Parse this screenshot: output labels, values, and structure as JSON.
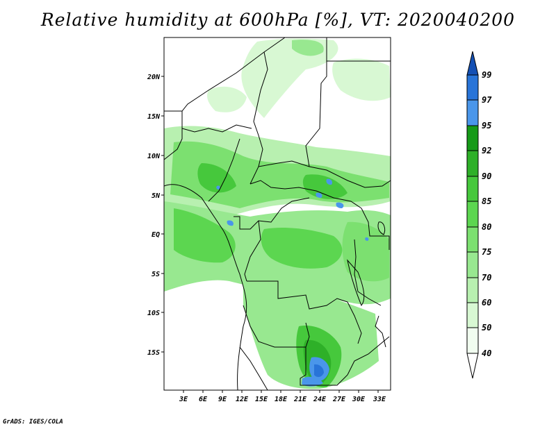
{
  "title": "Relative humidity at 600hPa [%], VT: 2020040200",
  "credit": "GrADS: IGES/COLA",
  "colors": {
    "c40": "#f1fdf0",
    "c50": "#d8f8d3",
    "c60": "#b8f0b0",
    "c70": "#98e890",
    "c75": "#7ce070",
    "c80": "#5cd650",
    "c85": "#46c83c",
    "c90": "#2eb028",
    "c92": "#169a18",
    "c95": "#4a96ea",
    "c97": "#2874d8",
    "c99": "#1450b4"
  },
  "map": {
    "lon_labels": [
      "3E",
      "6E",
      "9E",
      "12E",
      "15E",
      "18E",
      "21E",
      "24E",
      "27E",
      "30E",
      "33E"
    ],
    "lat_labels": [
      "20N",
      "15N",
      "10N",
      "5N",
      "EQ",
      "5S",
      "10S",
      "15S"
    ]
  },
  "colorbar": {
    "labels": [
      "99",
      "97",
      "95",
      "92",
      "90",
      "85",
      "80",
      "75",
      "70",
      "60",
      "50",
      "40"
    ]
  }
}
